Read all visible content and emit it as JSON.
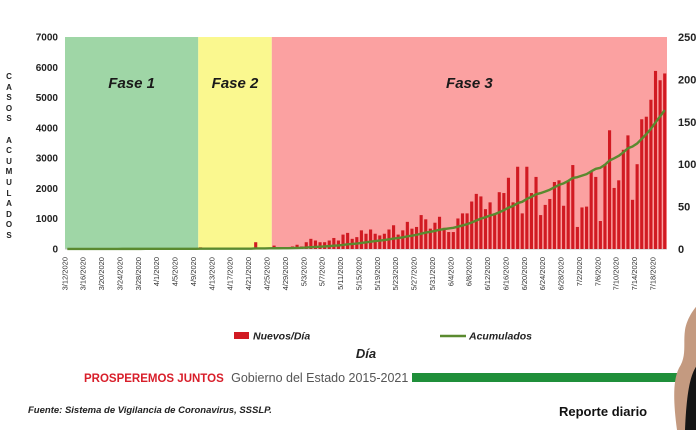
{
  "chart_data": {
    "type": "bar",
    "title": "",
    "xlabel": "Día",
    "ylabel_left": "CASOS ACUMULADOS",
    "ylim_left": [
      0,
      7000
    ],
    "yticks_left": [
      "0",
      "1000",
      "2000",
      "3000",
      "4000",
      "5000",
      "6000",
      "7000"
    ],
    "ylim_right": [
      0,
      250
    ],
    "yticks_right": [
      "0",
      "50",
      "100",
      "150",
      "200",
      "250"
    ],
    "x_tick_labels": [
      "3/12/2020",
      "3/16/2020",
      "3/20/2020",
      "3/24/2020",
      "3/28/2020",
      "4/1/2020",
      "4/5/2020",
      "4/9/2020",
      "4/13/2020",
      "4/17/2020",
      "4/21/2020",
      "4/25/2020",
      "4/29/2020",
      "5/3/2020",
      "5/7/2020",
      "5/11/2020",
      "5/15/2020",
      "5/19/2020",
      "5/23/2020",
      "5/27/2020",
      "5/31/2020",
      "6/4/2020",
      "6/8/2020",
      "6/12/2020",
      "6/16/2020",
      "6/20/2020",
      "6/24/2020",
      "6/28/2020",
      "7/2/2020",
      "7/6/2020",
      "7/10/2020",
      "7/14/2020",
      "7/18/2020"
    ],
    "phases": [
      {
        "label": "Fase 1",
        "start_day": 0,
        "end_day": 29,
        "color": "#9fd6a6"
      },
      {
        "label": "Fase 2",
        "start_day": 29,
        "end_day": 45,
        "color": "#faf88f"
      },
      {
        "label": "Fase 3",
        "start_day": 45,
        "end_day": 131,
        "color": "#fba1a1"
      }
    ],
    "legend": {
      "placement": "bottom",
      "items": [
        "Nuevos/Día",
        "Acumulados"
      ]
    },
    "series": [
      {
        "name": "Nuevos/Día",
        "kind": "bar",
        "axis": "right",
        "color": "#d11a22",
        "values": [
          0,
          0,
          0,
          0,
          0,
          1,
          0,
          0,
          1,
          0,
          0,
          0,
          1,
          0,
          0,
          0,
          0,
          1,
          0,
          0,
          1,
          0,
          0,
          0,
          0,
          1,
          0,
          0,
          0,
          2,
          0,
          0,
          0,
          1,
          0,
          0,
          1,
          0,
          0,
          0,
          0,
          8,
          0,
          1,
          1,
          4,
          0,
          1,
          2,
          3,
          5,
          3,
          8,
          12,
          10,
          8,
          8,
          10,
          13,
          10,
          17,
          19,
          12,
          14,
          22,
          18,
          23,
          18,
          16,
          18,
          23,
          28,
          17,
          22,
          32,
          24,
          26,
          40,
          35,
          24,
          31,
          38,
          25,
          20,
          20,
          36,
          42,
          42,
          56,
          65,
          62,
          47,
          55,
          42,
          67,
          66,
          84,
          55,
          97,
          42,
          97,
          66,
          85,
          40,
          52,
          59,
          79,
          81,
          51,
          80,
          99,
          26,
          49,
          50,
          92,
          85,
          33,
          100,
          140,
          72,
          81,
          117,
          134,
          58,
          100,
          153,
          156,
          176,
          210,
          199,
          207
        ]
      },
      {
        "name": "Acumulados",
        "kind": "line",
        "axis": "left",
        "color": "#5a8a2f",
        "values": [
          1,
          1,
          1,
          1,
          1,
          2,
          2,
          2,
          3,
          3,
          3,
          3,
          4,
          4,
          4,
          4,
          4,
          5,
          5,
          5,
          6,
          6,
          6,
          6,
          6,
          7,
          7,
          7,
          7,
          9,
          9,
          9,
          9,
          10,
          10,
          10,
          11,
          11,
          11,
          11,
          11,
          19,
          19,
          20,
          21,
          25,
          25,
          26,
          28,
          31,
          36,
          39,
          47,
          59,
          69,
          77,
          85,
          95,
          108,
          118,
          135,
          154,
          166,
          180,
          202,
          220,
          243,
          261,
          277,
          295,
          318,
          346,
          363,
          385,
          417,
          441,
          467,
          507,
          542,
          566,
          597,
          635,
          660,
          680,
          700,
          736,
          778,
          820,
          876,
          941,
          1003,
          1050,
          1105,
          1147,
          1214,
          1280,
          1364,
          1419,
          1516,
          1558,
          1655,
          1721,
          1806,
          1846,
          1898,
          1957,
          2036,
          2117,
          2168,
          2248,
          2347,
          2373,
          2422,
          2472,
          2564,
          2649,
          2682,
          2782,
          2922,
          2994,
          3075,
          3192,
          3326,
          3384,
          3484,
          3637,
          3793,
          3969,
          4179,
          4378,
          4585
        ]
      }
    ]
  },
  "footer": {
    "brand": "PROSPEREMOS JUNTOS",
    "government": "Gobierno del Estado 2015-2021",
    "source": "Fuente: Sistema de Vigilancia de Coronavirus, SSSLP.",
    "report": "Reporte diario"
  }
}
